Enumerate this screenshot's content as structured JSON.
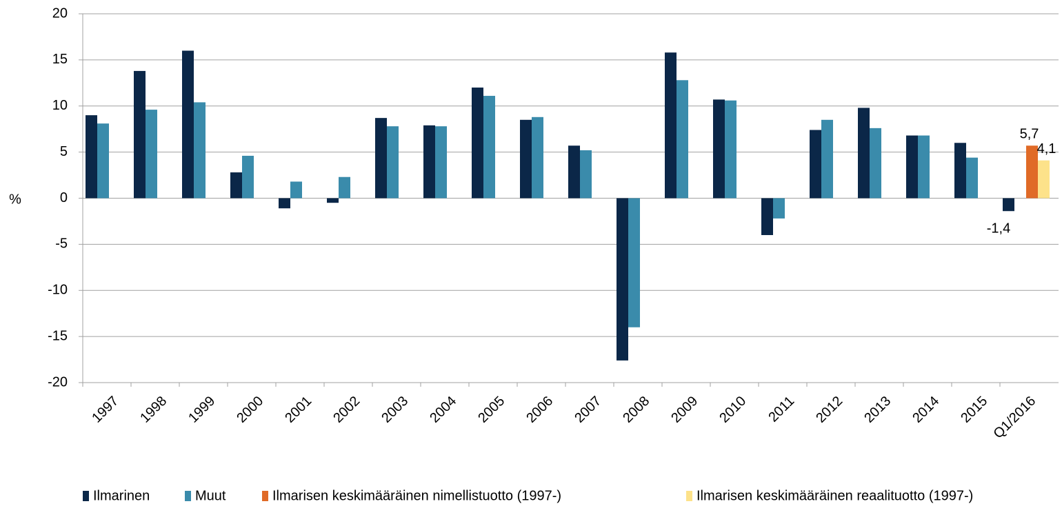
{
  "chart_data": {
    "type": "bar",
    "y_label": "%",
    "categories": [
      "1997",
      "1998",
      "1999",
      "2000",
      "2001",
      "2002",
      "2003",
      "2004",
      "2005",
      "2006",
      "2007",
      "2008",
      "2009",
      "2010",
      "2011",
      "2012",
      "2013",
      "2014",
      "2015",
      "Q1/2016"
    ],
    "series": [
      {
        "name": "Ilmarinen",
        "color": "#0b2748",
        "values": [
          9.0,
          13.8,
          16.0,
          2.8,
          -1.1,
          -0.5,
          8.7,
          7.9,
          12.0,
          8.5,
          5.7,
          -17.6,
          15.8,
          10.7,
          -4.0,
          7.4,
          9.8,
          6.8,
          6.0,
          -1.4
        ],
        "value_labels": [
          null,
          null,
          null,
          null,
          null,
          null,
          null,
          null,
          null,
          null,
          null,
          null,
          null,
          null,
          null,
          null,
          null,
          null,
          null,
          "-1,4"
        ]
      },
      {
        "name": "Muut",
        "color": "#3a8bab",
        "values": [
          8.1,
          9.6,
          10.4,
          4.6,
          1.8,
          2.3,
          7.8,
          7.8,
          11.1,
          8.8,
          5.2,
          -14.0,
          12.8,
          10.6,
          -2.2,
          8.5,
          7.6,
          6.8,
          4.4,
          null
        ]
      },
      {
        "name": "Ilmarisen keskimääräinen nimellistuotto (1997-)",
        "color": "#e06a27",
        "values": [
          null,
          null,
          null,
          null,
          null,
          null,
          null,
          null,
          null,
          null,
          null,
          null,
          null,
          null,
          null,
          null,
          null,
          null,
          null,
          5.7
        ],
        "value_labels": [
          null,
          null,
          null,
          null,
          null,
          null,
          null,
          null,
          null,
          null,
          null,
          null,
          null,
          null,
          null,
          null,
          null,
          null,
          null,
          "5,7"
        ]
      },
      {
        "name": "Ilmarisen keskimääräinen reaalituotto (1997-)",
        "color": "#fde28a",
        "values": [
          null,
          null,
          null,
          null,
          null,
          null,
          null,
          null,
          null,
          null,
          null,
          null,
          null,
          null,
          null,
          null,
          null,
          null,
          null,
          4.1
        ],
        "value_labels": [
          null,
          null,
          null,
          null,
          null,
          null,
          null,
          null,
          null,
          null,
          null,
          null,
          null,
          null,
          null,
          null,
          null,
          null,
          null,
          "4,1"
        ]
      }
    ],
    "ylim": [
      -20,
      20
    ],
    "yticks": [
      -20,
      -15,
      -10,
      -5,
      0,
      5,
      10,
      15,
      20
    ],
    "grid": true,
    "legend": "bottom"
  }
}
